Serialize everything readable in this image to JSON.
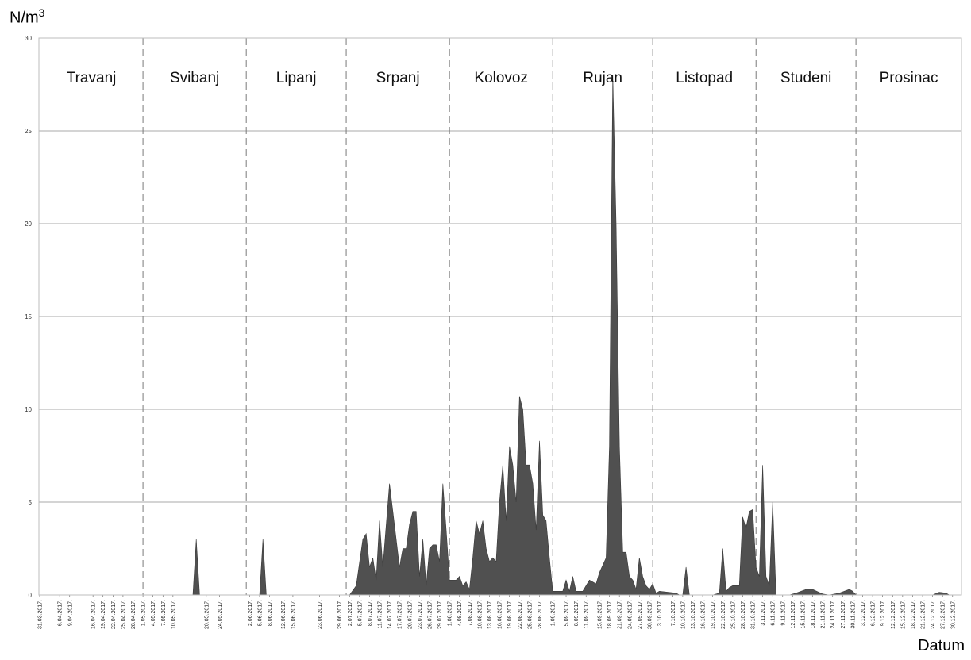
{
  "chart_data": {
    "type": "area",
    "ylabel_base": "N/m",
    "ylabel_exp": "3",
    "xlabel": "Datum",
    "ylim": [
      0,
      30
    ],
    "yticks": [
      0,
      5,
      10,
      15,
      20,
      25,
      30
    ],
    "grid": true,
    "xrange": [
      "31.03.2017.",
      "31.12.2017."
    ],
    "xtick_labels": [
      "31.03.2017.",
      "6.04.2017.",
      "9.04.2017.",
      "16.04.2017.",
      "19.04.2017.",
      "22.04.2017.",
      "25.04.2017.",
      "28.04.2017.",
      "1.05.2017.",
      "4.05.2017.",
      "7.05.2017.",
      "10.05.2017.",
      "20.05.2017.",
      "24.05.2017.",
      "2.06.2017.",
      "5.06.2017.",
      "8.06.2017.",
      "12.06.2017.",
      "15.06.2017.",
      "23.06.2017.",
      "29.06.2017.",
      "2.07.2017.",
      "5.07.2017.",
      "8.07.2017.",
      "11.07.2017.",
      "14.07.2017.",
      "17.07.2017.",
      "20.07.2017.",
      "23.07.2017.",
      "26.07.2017.",
      "29.07.2017.",
      "1.08.2017.",
      "4.08.2017.",
      "7.08.2017.",
      "10.08.2017.",
      "13.08.2017.",
      "16.08.2017.",
      "19.08.2017.",
      "22.08.2017.",
      "25.08.2017.",
      "28.08.2017.",
      "1.09.2017.",
      "5.09.2017.",
      "8.09.2017.",
      "11.09.2017.",
      "15.09.2017.",
      "18.09.2017.",
      "21.09.2017.",
      "24.09.2017.",
      "27.09.2017.",
      "30.09.2017.",
      "3.10.2017.",
      "7.10.2017.",
      "10.10.2017.",
      "13.10.2017.",
      "16.10.2017.",
      "19.10.2017.",
      "22.10.2017.",
      "25.10.2017.",
      "28.10.2017.",
      "31.10.2017.",
      "3.11.2017.",
      "6.11.2017.",
      "9.11.2017.",
      "12.11.2017.",
      "15.11.2017.",
      "18.11.2017.",
      "21.11.2017.",
      "24.11.2017.",
      "27.11.2017.",
      "30.11.2017.",
      "3.12.2017.",
      "6.12.2017.",
      "9.12.2017.",
      "12.12.2017.",
      "15.12.2017.",
      "18.12.2017.",
      "21.12.2017.",
      "24.12.2017.",
      "27.12.2017.",
      "30.12.2017."
    ],
    "months": [
      {
        "name": "Travanj",
        "start": "31.03.2017."
      },
      {
        "name": "Svibanj",
        "start": "1.05.2017."
      },
      {
        "name": "Lipanj",
        "start": "1.06.2017."
      },
      {
        "name": "Srpanj",
        "start": "1.07.2017."
      },
      {
        "name": "Kolovoz",
        "start": "1.08.2017."
      },
      {
        "name": "Rujan",
        "start": "1.09.2017."
      },
      {
        "name": "Listopad",
        "start": "1.10.2017."
      },
      {
        "name": "Studeni",
        "start": "1.11.2017."
      },
      {
        "name": "Prosinac",
        "start": "1.12.2017."
      }
    ],
    "fill_color": "#505050",
    "points": [
      [
        "31.03.2017.",
        0
      ],
      [
        "16.05.2017.",
        0
      ],
      [
        "17.05.2017.",
        3.0
      ],
      [
        "18.05.2017.",
        0
      ],
      [
        "5.06.2017.",
        0
      ],
      [
        "6.06.2017.",
        3.0
      ],
      [
        "7.06.2017.",
        0
      ],
      [
        "2.07.2017.",
        0
      ],
      [
        "4.07.2017.",
        0.5
      ],
      [
        "6.07.2017.",
        3.0
      ],
      [
        "7.07.2017.",
        3.3
      ],
      [
        "8.07.2017.",
        1.5
      ],
      [
        "9.07.2017.",
        2.0
      ],
      [
        "10.07.2017.",
        0.8
      ],
      [
        "11.07.2017.",
        4.0
      ],
      [
        "12.07.2017.",
        1.5
      ],
      [
        "14.07.2017.",
        6.0
      ],
      [
        "15.07.2017.",
        4.5
      ],
      [
        "17.07.2017.",
        1.5
      ],
      [
        "18.07.2017.",
        2.5
      ],
      [
        "19.07.2017.",
        2.5
      ],
      [
        "20.07.2017.",
        3.8
      ],
      [
        "21.07.2017.",
        4.5
      ],
      [
        "22.07.2017.",
        4.5
      ],
      [
        "23.07.2017.",
        1.0
      ],
      [
        "24.07.2017.",
        3.0
      ],
      [
        "25.07.2017.",
        0.5
      ],
      [
        "26.07.2017.",
        2.5
      ],
      [
        "27.07.2017.",
        2.7
      ],
      [
        "28.07.2017.",
        2.7
      ],
      [
        "29.07.2017.",
        1.8
      ],
      [
        "30.07.2017.",
        6.0
      ],
      [
        "31.07.2017.",
        3.5
      ],
      [
        "1.08.2017.",
        0.8
      ],
      [
        "3.08.2017.",
        0.8
      ],
      [
        "4.08.2017.",
        1.0
      ],
      [
        "5.08.2017.",
        0.5
      ],
      [
        "6.08.2017.",
        0.7
      ],
      [
        "7.08.2017.",
        0.3
      ],
      [
        "8.08.2017.",
        2.0
      ],
      [
        "9.08.2017.",
        4.0
      ],
      [
        "10.08.2017.",
        3.3
      ],
      [
        "11.08.2017.",
        4.0
      ],
      [
        "12.08.2017.",
        2.5
      ],
      [
        "13.08.2017.",
        1.8
      ],
      [
        "14.08.2017.",
        2.0
      ],
      [
        "15.08.2017.",
        1.8
      ],
      [
        "16.08.2017.",
        5.0
      ],
      [
        "17.08.2017.",
        7.0
      ],
      [
        "18.08.2017.",
        4.0
      ],
      [
        "19.08.2017.",
        8.0
      ],
      [
        "20.08.2017.",
        7.0
      ],
      [
        "21.08.2017.",
        5.0
      ],
      [
        "22.08.2017.",
        10.7
      ],
      [
        "23.08.2017.",
        10.0
      ],
      [
        "24.08.2017.",
        7.0
      ],
      [
        "25.08.2017.",
        7.0
      ],
      [
        "26.08.2017.",
        6.0
      ],
      [
        "27.08.2017.",
        3.5
      ],
      [
        "28.08.2017.",
        8.3
      ],
      [
        "29.08.2017.",
        4.3
      ],
      [
        "30.08.2017.",
        4.0
      ],
      [
        "31.08.2017.",
        2.0
      ],
      [
        "1.09.2017.",
        0.2
      ],
      [
        "4.09.2017.",
        0.2
      ],
      [
        "5.09.2017.",
        0.8
      ],
      [
        "6.09.2017.",
        0.2
      ],
      [
        "7.09.2017.",
        1.0
      ],
      [
        "8.09.2017.",
        0.2
      ],
      [
        "9.09.2017.",
        0.2
      ],
      [
        "10.09.2017.",
        0.2
      ],
      [
        "12.09.2017.",
        0.8
      ],
      [
        "13.09.2017.",
        0.7
      ],
      [
        "14.09.2017.",
        0.6
      ],
      [
        "15.09.2017.",
        1.2
      ],
      [
        "17.09.2017.",
        2.0
      ],
      [
        "18.09.2017.",
        8.0
      ],
      [
        "19.09.2017.",
        28.0
      ],
      [
        "20.09.2017.",
        20.0
      ],
      [
        "21.09.2017.",
        8.0
      ],
      [
        "22.09.2017.",
        2.3
      ],
      [
        "23.09.2017.",
        2.3
      ],
      [
        "24.09.2017.",
        1.0
      ],
      [
        "25.09.2017.",
        0.8
      ],
      [
        "26.09.2017.",
        0.3
      ],
      [
        "27.09.2017.",
        2.0
      ],
      [
        "28.09.2017.",
        1.0
      ],
      [
        "29.09.2017.",
        0.5
      ],
      [
        "30.09.2017.",
        0.3
      ],
      [
        "1.10.2017.",
        0.6
      ],
      [
        "2.10.2017.",
        0.1
      ],
      [
        "3.10.2017.",
        0.2
      ],
      [
        "8.10.2017.",
        0.1
      ],
      [
        "9.10.2017.",
        0.0
      ],
      [
        "10.10.2017.",
        0.0
      ],
      [
        "11.10.2017.",
        1.5
      ],
      [
        "12.10.2017.",
        0.0
      ],
      [
        "19.10.2017.",
        0.0
      ],
      [
        "21.10.2017.",
        0.1
      ],
      [
        "22.10.2017.",
        2.5
      ],
      [
        "23.10.2017.",
        0.2
      ],
      [
        "24.10.2017.",
        0.4
      ],
      [
        "25.10.2017.",
        0.5
      ],
      [
        "27.10.2017.",
        0.5
      ],
      [
        "28.10.2017.",
        4.2
      ],
      [
        "29.10.2017.",
        3.6
      ],
      [
        "30.10.2017.",
        4.5
      ],
      [
        "31.10.2017.",
        4.6
      ],
      [
        "1.11.2017.",
        1.5
      ],
      [
        "2.11.2017.",
        1.0
      ],
      [
        "3.11.2017.",
        7.0
      ],
      [
        "4.11.2017.",
        1.0
      ],
      [
        "5.11.2017.",
        0.5
      ],
      [
        "6.11.2017.",
        5.0
      ],
      [
        "7.11.2017.",
        0.0
      ],
      [
        "11.11.2017.",
        0.0
      ],
      [
        "13.11.2017.",
        0.1
      ],
      [
        "16.11.2017.",
        0.3
      ],
      [
        "18.11.2017.",
        0.3
      ],
      [
        "21.11.2017.",
        0.05
      ],
      [
        "23.11.2017.",
        0.0
      ],
      [
        "26.11.2017.",
        0.1
      ],
      [
        "29.11.2017.",
        0.3
      ],
      [
        "30.11.2017.",
        0.2
      ],
      [
        "1.12.2017.",
        0.0
      ],
      [
        "24.12.2017.",
        0.0
      ],
      [
        "26.12.2017.",
        0.15
      ],
      [
        "28.12.2017.",
        0.1
      ],
      [
        "29.12.2017.",
        0.0
      ],
      [
        "31.12.2017.",
        0.0
      ]
    ]
  }
}
